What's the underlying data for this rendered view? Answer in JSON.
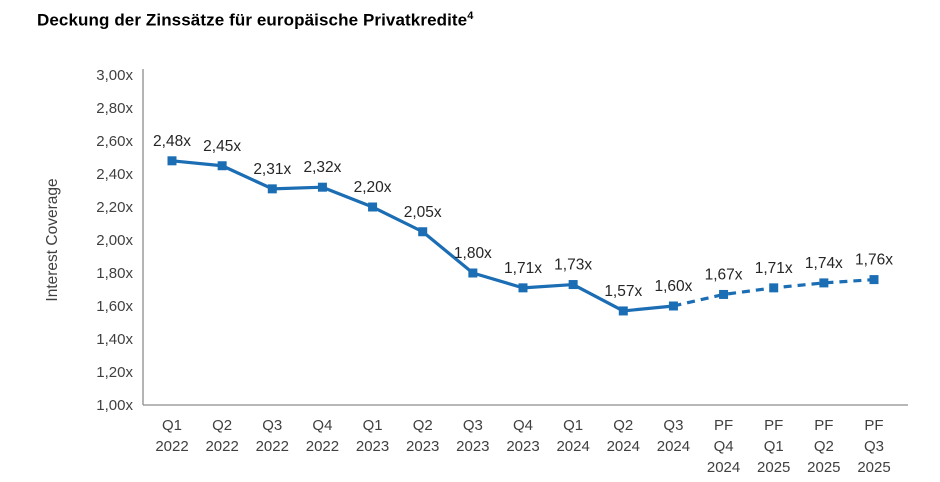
{
  "page": {
    "title": "Deckung der Zinssätze für europäische Privatkredite",
    "title_footnote": "4"
  },
  "chart_data": {
    "type": "line",
    "title": "Deckung der Zinssätze für europäische Privatkredite",
    "title_footnote": "4",
    "ylabel": "Interest Coverage",
    "xlabel": "",
    "ylim": [
      1.0,
      3.0
    ],
    "ytick_step": 0.2,
    "ytick_labels": [
      "1,00x",
      "1,20x",
      "1,40x",
      "1,60x",
      "1,80x",
      "2,00x",
      "2,20x",
      "2,40x",
      "2,60x",
      "2,80x",
      "3,00x"
    ],
    "grid": false,
    "legend_position": "none",
    "line_color": "#1b6db4",
    "label_color": "#404040",
    "data_label_color": "#262626",
    "axis_color": "#8c8c8c",
    "solid_until_index": 10,
    "categories": [
      [
        "Q1",
        "2022"
      ],
      [
        "Q2",
        "2022"
      ],
      [
        "Q3",
        "2022"
      ],
      [
        "Q4",
        "2022"
      ],
      [
        "Q1",
        "2023"
      ],
      [
        "Q2",
        "2023"
      ],
      [
        "Q3",
        "2023"
      ],
      [
        "Q4",
        "2023"
      ],
      [
        "Q1",
        "2024"
      ],
      [
        "Q2",
        "2024"
      ],
      [
        "Q3",
        "2024"
      ],
      [
        "PF",
        "Q4",
        "2024"
      ],
      [
        "PF",
        "Q1",
        "2025"
      ],
      [
        "PF",
        "Q2",
        "2025"
      ],
      [
        "PF",
        "Q3",
        "2025"
      ]
    ],
    "series": [
      {
        "name": "Interest Coverage",
        "values": [
          2.48,
          2.45,
          2.31,
          2.32,
          2.2,
          2.05,
          1.8,
          1.71,
          1.73,
          1.57,
          1.6,
          1.67,
          1.71,
          1.74,
          1.76
        ],
        "labels": [
          "2,48x",
          "2,45x",
          "2,31x",
          "2,32x",
          "2,20x",
          "2,05x",
          "1,80x",
          "1,71x",
          "1,73x",
          "1,57x",
          "1,60x",
          "1,67x",
          "1,71x",
          "1,74x",
          "1,76x"
        ],
        "forecast_flags": [
          false,
          false,
          false,
          false,
          false,
          false,
          false,
          false,
          false,
          false,
          false,
          true,
          true,
          true,
          true
        ]
      }
    ]
  }
}
